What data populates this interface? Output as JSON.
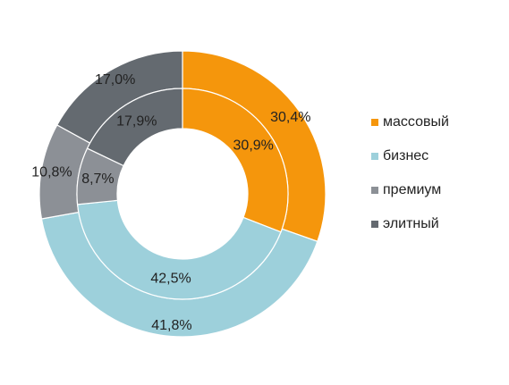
{
  "chart_data": {
    "type": "donut",
    "categories": [
      "массовый",
      "бизнес",
      "премиум",
      "элитный"
    ],
    "colors": [
      "#F5960C",
      "#9DD0DB",
      "#8C9096",
      "#646A70"
    ],
    "series": [
      {
        "ring": "outer",
        "values": [
          30.4,
          41.8,
          10.8,
          17.0
        ],
        "labels": [
          "30,4%",
          "41,8%",
          "10,8%",
          "17,0%"
        ]
      },
      {
        "ring": "inner",
        "values": [
          30.9,
          42.5,
          8.7,
          17.9
        ],
        "labels": [
          "30,9%",
          "42,5%",
          "8,7%",
          "17,9%"
        ]
      }
    ],
    "legend_position": "right"
  }
}
